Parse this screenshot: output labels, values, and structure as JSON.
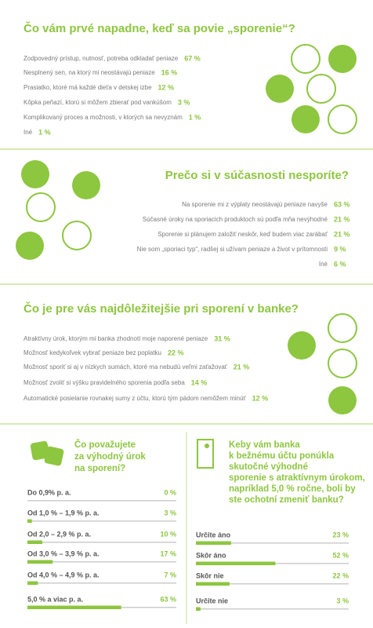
{
  "sections": [
    {
      "title": "Čo vám prvé napadne, keď sa povie „sporenie“?",
      "items": [
        {
          "text": "Zodpovedný prístup, nutnosť, potreba odkladať peniaze",
          "value": "67 %"
        },
        {
          "text": "Nesplnený sen, na ktorý mi neostávajú peniaze",
          "value": "16 %"
        },
        {
          "text": "Prasiatko, ktoré má každé dieťa v detskej izbe",
          "value": "12 %"
        },
        {
          "text": "Kôpka peňazí, ktorú si môžem zbierať pod vankúšom",
          "value": "3 %"
        },
        {
          "text": "Komplikovaný proces a možnosti, v ktorých sa nevyznám",
          "value": "1 %"
        },
        {
          "text": "Iné",
          "value": "1 %"
        }
      ]
    },
    {
      "title": "Prečo si v súčasnosti nesporíte?",
      "items": [
        {
          "text": "Na sporenie mi z výplaty neostávajú peniaze navyše",
          "value": "63 %"
        },
        {
          "text": "Súčasné úroky na sporiacich produktoch sú podľa mňa nevýhodné",
          "value": "21 %"
        },
        {
          "text": "Sporenie si plánujem založiť neskôr, keď budem viac zarábať",
          "value": "21 %"
        },
        {
          "text": "Nie som „sporiaci typ“, radšej si užívam peniaze a život v prítomnosti",
          "value": "9 %"
        },
        {
          "text": "Iné",
          "value": "6 %"
        }
      ]
    },
    {
      "title": "Čo je pre vás najdôležitejšie pri sporení v banke?",
      "items": [
        {
          "text": "Atraktívny úrok, ktorým mi banka zhodnotí moje naporené peniaze",
          "value": "31 %"
        },
        {
          "text": "Možnosť kedykoľvek vybrať peniaze bez poplatku",
          "value": "22 %"
        },
        {
          "text": "Možnosť sporiť si aj v nízkych sumách, ktoré ma nebudú veľmi zaťažovať",
          "value": "21 %"
        },
        {
          "text": "Možnosť zvoliť si výšku pravidelného sporenia podľa seba",
          "value": "14 %"
        },
        {
          "text": "Automatické posielanie rovnakej sumy z účtu, ktorú tým pádom nemôžem minúť",
          "value": "12 %"
        }
      ]
    }
  ],
  "polls": [
    {
      "title_lines": [
        "Čo považujete",
        "za výhodný úrok",
        "na sporení?"
      ],
      "options": [
        "Do 0,9% p. a.",
        "Od 1,0 % – 1,9 % p. a.",
        "Od 2,0 – 2,9 % p. a.",
        "Od 3,0 % – 3,9 % p. a.",
        "Od 4,0 % – 4,9 % p. a.",
        "5,0 % a viac p. a."
      ],
      "values": [
        0,
        3,
        10,
        17,
        7,
        63
      ],
      "value_labels": [
        "0 %",
        "3 %",
        "10 %",
        "17 %",
        "7 %",
        "63 %"
      ],
      "xlim": [
        0,
        100
      ]
    },
    {
      "title_lines": [
        "Keby vám banka",
        "k bežnému účtu ponúkla",
        "skutočné výhodné",
        "sporenie s atraktívnym úrokom,",
        "napríklad 5,0 % ročne, boli by",
        "ste ochotní zmeniť banku?"
      ],
      "options": [
        "Určite áno",
        "Skôr áno",
        "Skôr nie",
        "Určite nie"
      ],
      "values": [
        23,
        52,
        22,
        3
      ],
      "value_labels": [
        "23 %",
        "52 %",
        "22 %",
        "3 %"
      ],
      "xlim": [
        0,
        100
      ]
    }
  ]
}
